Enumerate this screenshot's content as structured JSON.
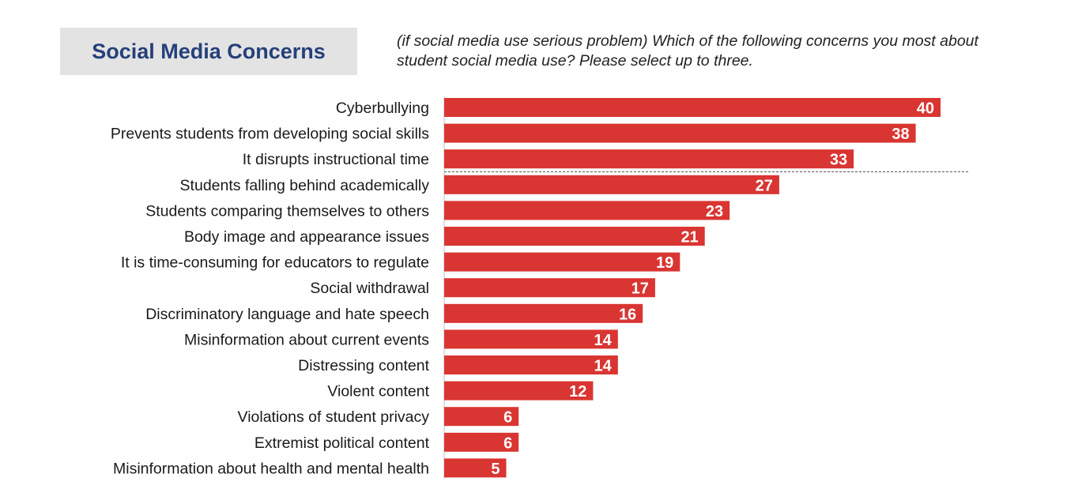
{
  "header": {
    "title": "Social Media Concerns",
    "question": "(if social media use serious problem) Which of the following concerns you most about student social media use? Please select up to three."
  },
  "colors": {
    "bar": "#d93532",
    "title_text": "#25407a",
    "title_background": "#e3e3e3",
    "axis_line": "#bfbfbf",
    "divider": "#555555"
  },
  "chart_data": {
    "type": "bar",
    "orientation": "horizontal",
    "categories": [
      "Cyberbullying",
      "Prevents students from developing social skills",
      "It disrupts instructional time",
      "Students falling behind academically",
      "Students comparing themselves to others",
      "Body image and appearance issues",
      "It is time-consuming for educators to regulate",
      "Social withdrawal",
      "Discriminatory language and hate speech",
      "Misinformation about current events",
      "Distressing content",
      "Violent content",
      "Violations of student privacy",
      "Extremist political content",
      "Misinformation about health and mental health"
    ],
    "values": [
      40,
      38,
      33,
      27,
      23,
      21,
      19,
      17,
      16,
      14,
      14,
      12,
      6,
      6,
      5
    ],
    "data_labels": [
      "40",
      "38",
      "33",
      "27",
      "23",
      "21",
      "19",
      "17",
      "16",
      "14",
      "14",
      "12",
      "6",
      "6",
      "5"
    ],
    "xlim": [
      0,
      40
    ],
    "grid": false,
    "legend": "none",
    "divider_after_index": 2
  }
}
